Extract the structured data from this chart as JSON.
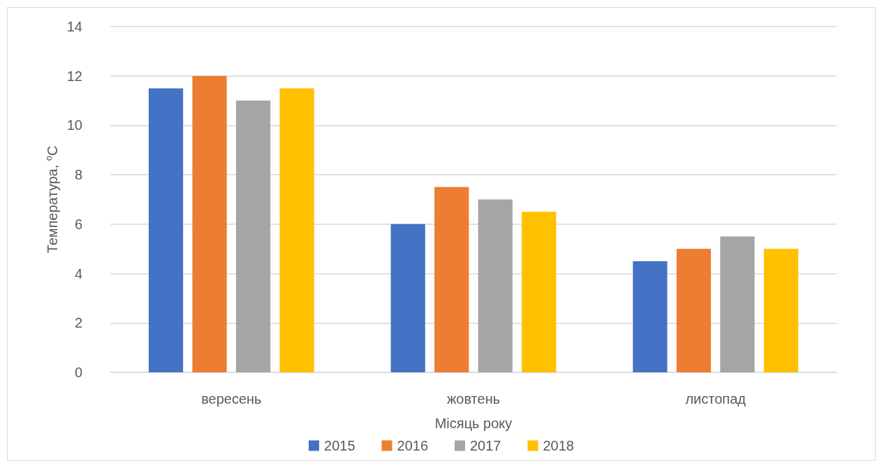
{
  "chart_data": {
    "type": "bar",
    "xlabel": "Місяць року",
    "ylabel": "Температура, $^{o}$C",
    "categories": [
      "вересень",
      "жовтень",
      "листопад"
    ],
    "series": [
      {
        "name": "2015",
        "color": "#4472c4",
        "values": [
          11.5,
          6,
          4.5
        ]
      },
      {
        "name": "2016",
        "color": "#ed7d31",
        "values": [
          12,
          7.5,
          5
        ]
      },
      {
        "name": "2017",
        "color": "#a5a5a5",
        "values": [
          11,
          7,
          5.5
        ]
      },
      {
        "name": "2018",
        "color": "#ffc000",
        "values": [
          11.5,
          6.5,
          5
        ]
      }
    ],
    "ylim": [
      0,
      14
    ],
    "yticks": [
      0,
      2,
      4,
      6,
      8,
      10,
      12,
      14
    ],
    "grid": "y",
    "legend": "bottom"
  }
}
